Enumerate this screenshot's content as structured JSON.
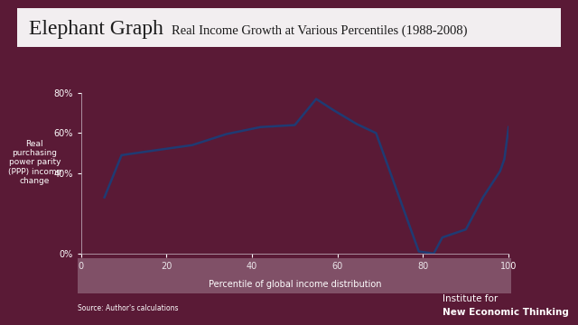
{
  "chart_data": {
    "type": "line",
    "title": "Elephant Graph",
    "subtitle": "Real Income Growth at Various Percentiles (1988-2008)",
    "y_label": "Real purchasing power parity (PPP) income change",
    "x_label": "Percentile of global income distribution",
    "source": "Source: Author's calculations",
    "brand": [
      "Institute for",
      "New Economic Thinking"
    ],
    "x": [
      5.5,
      9.5,
      16,
      26,
      34,
      42,
      50,
      55,
      59,
      64.5,
      69,
      79,
      82.5,
      84.5,
      90,
      94,
      98,
      99,
      100
    ],
    "values": [
      28,
      49,
      51,
      54,
      59.5,
      63,
      64,
      77,
      71.5,
      64.5,
      60,
      1,
      0,
      8,
      12,
      28,
      41,
      47,
      63
    ],
    "color": "#1f3b73",
    "xlim": [
      0,
      100
    ],
    "xticks": [
      0,
      20,
      40,
      60,
      80,
      100
    ],
    "ylim": [
      0,
      80
    ],
    "yticks": [
      {
        "value": 0,
        "label": "0%"
      },
      {
        "value": 40,
        "label": "40%"
      },
      {
        "value": 60,
        "label": "60%"
      },
      {
        "value": 80,
        "label": "80%"
      }
    ],
    "grid": false
  }
}
